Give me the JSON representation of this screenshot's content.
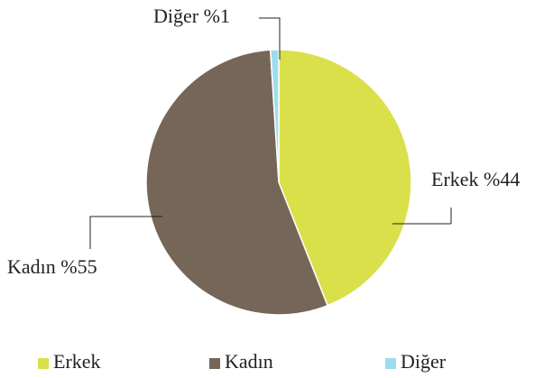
{
  "chart_data": {
    "type": "pie",
    "categories": [
      "Erkek",
      "Kadın",
      "Diğer"
    ],
    "values": [
      44,
      55,
      1
    ],
    "value_labels": [
      "Erkek %44",
      "Kadın %55",
      "Diğer %1"
    ],
    "colors": [
      "#d9e04a",
      "#756657",
      "#9ddcf0"
    ],
    "legend": "bottom"
  }
}
